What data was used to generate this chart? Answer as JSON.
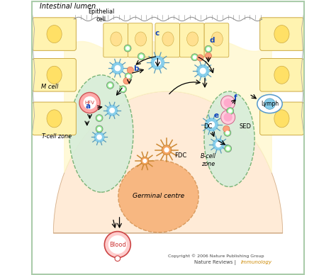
{
  "bg_color": "#ffffff",
  "title": "Intestinal lumen",
  "copyright": "Copyright © 2006 Nature Publishing Group",
  "nature_reviews_plain": "Nature Reviews | ",
  "nature_reviews_italic": "Immunology",
  "border_color": "#aaccaa",
  "dome_color": "#ffe8d0",
  "epithelial_color": "#fff8cc",
  "wall_color": "#fff3b0",
  "wall_edge": "#ccaa44",
  "t_zone_color": "#d4edda",
  "t_zone_edge": "#66aa66",
  "b_zone_color": "#d4edda",
  "b_zone_edge": "#66aa66",
  "gc_color": "#f4a460",
  "gc_edge": "#cc8844",
  "dc_color": "#87CEEB",
  "dc_edge": "#5599bb",
  "green_cell_color": "#90EE90",
  "orange_cell_color": "#FFA07A",
  "hfv_color": "#ffaaaa",
  "hfv_edge": "#cc5555",
  "hfv_text": "#cc3333",
  "blood_color": "#ffcccc",
  "blood_edge": "#cc4444",
  "blood_text": "#cc3333",
  "lymph_edge": "#5599cc",
  "fdc_color": "#cc8833",
  "label_color": "#1144bb",
  "copyright_color": "#444444",
  "immunology_color": "#cc8800"
}
